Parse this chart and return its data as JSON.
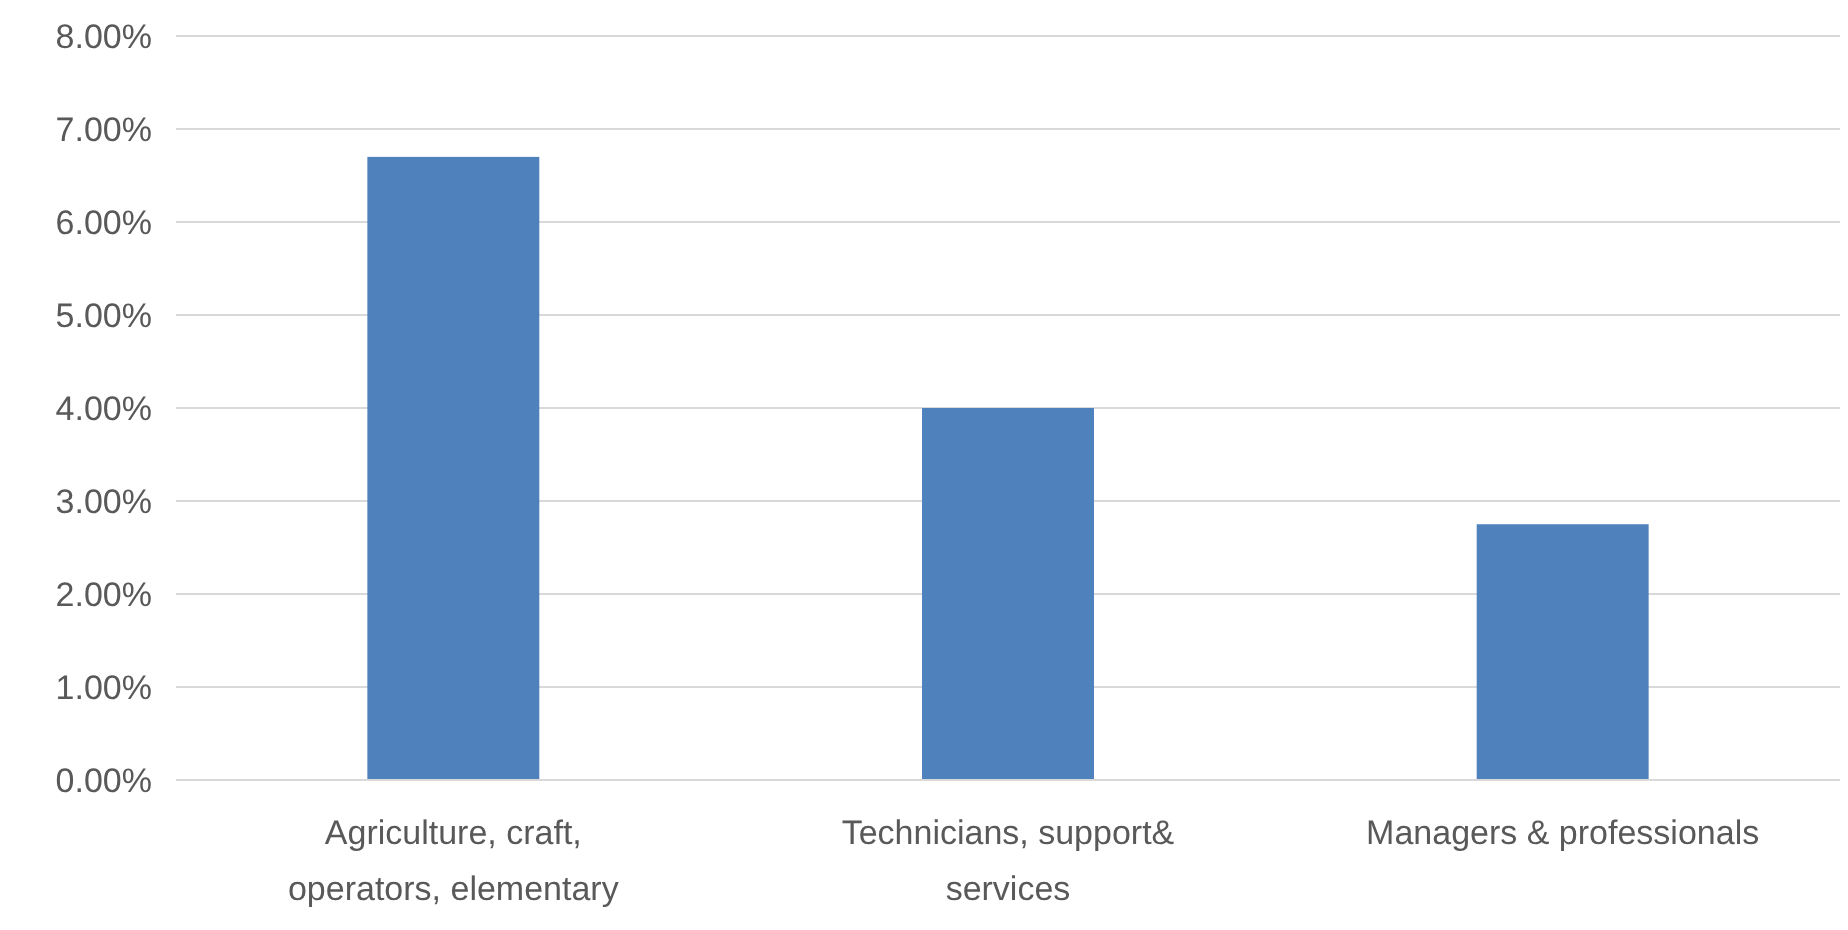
{
  "chart_data": {
    "type": "bar",
    "categories": [
      "Agriculture, craft, operators, elementary",
      "Technicians, support& services",
      "Managers & professionals"
    ],
    "values": [
      6.7,
      4.0,
      2.75
    ],
    "color": "#4f81bd",
    "ylim": [
      0,
      8
    ],
    "yticks": [
      {
        "value": 0,
        "label": "0.00%"
      },
      {
        "value": 1,
        "label": "1.00%"
      },
      {
        "value": 2,
        "label": "2.00%"
      },
      {
        "value": 3,
        "label": "3.00%"
      },
      {
        "value": 4,
        "label": "4.00%"
      },
      {
        "value": 5,
        "label": "5.00%"
      },
      {
        "value": 6,
        "label": "6.00%"
      },
      {
        "value": 7,
        "label": "7.00%"
      },
      {
        "value": 8,
        "label": "8.00%"
      }
    ],
    "grid": "y"
  }
}
